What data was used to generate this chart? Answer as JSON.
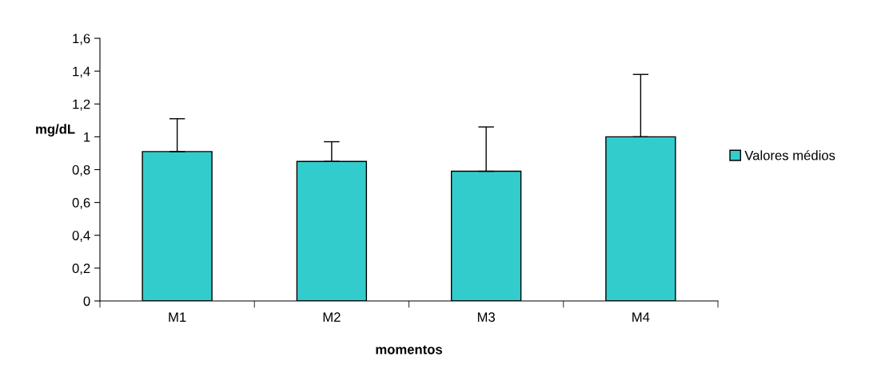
{
  "chart_data": {
    "type": "bar",
    "xlabel": "momentos",
    "ylabel": "mg/dL",
    "categories": [
      "M1",
      "M2",
      "M3",
      "M4"
    ],
    "series": [
      {
        "name": "Valores médios",
        "color": "#33cccc",
        "values": [
          0.91,
          0.85,
          0.79,
          1.0
        ],
        "errors": [
          [
            0.91,
            1.11
          ],
          [
            0.85,
            0.97
          ],
          [
            0.79,
            1.06
          ],
          [
            1.0,
            1.38
          ]
        ]
      }
    ],
    "ylim": [
      0,
      1.6
    ],
    "yticks": [
      0,
      {
        "value": 0.2,
        "label": "0,2"
      },
      {
        "value": 0.4,
        "label": "0,4"
      },
      {
        "value": 0.6,
        "label": "0,6"
      },
      {
        "value": 0.8,
        "label": "0,8"
      },
      1,
      {
        "value": 1.2,
        "label": "1,2"
      },
      {
        "value": 1.4,
        "label": "1,4"
      },
      {
        "value": 1.6,
        "label": "1,6"
      }
    ],
    "grid": false,
    "legend": "right"
  }
}
